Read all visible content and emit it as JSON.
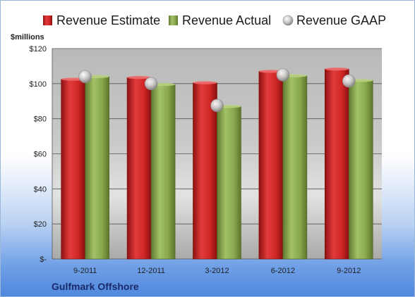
{
  "chart_data": {
    "type": "bar",
    "categories": [
      "9-2011",
      "12-2011",
      "3-2012",
      "6-2012",
      "9-2012"
    ],
    "series": [
      {
        "name": "Revenue Estimate",
        "type": "bar",
        "color": "#cc2a2a",
        "values": [
          102.5,
          103.5,
          100.5,
          107,
          108.3
        ]
      },
      {
        "name": "Revenue Actual",
        "type": "bar",
        "color": "#8aa84e",
        "values": [
          104,
          99.5,
          87,
          104.5,
          101.8
        ]
      },
      {
        "name": "Revenue GAAP",
        "type": "marker",
        "color": "#c8c8c8",
        "values": [
          104,
          100,
          87.5,
          105,
          101.5
        ]
      }
    ],
    "ylabel": "$millions",
    "ylim": [
      0,
      120
    ],
    "yticks": [
      0,
      20,
      40,
      60,
      80,
      100,
      120
    ],
    "ytick_labels": [
      "$-",
      "$20",
      "$40",
      "$60",
      "$80",
      "$100",
      "$120"
    ],
    "grid": true,
    "legend_position": "top",
    "company": "Gulfmark Offshore"
  }
}
